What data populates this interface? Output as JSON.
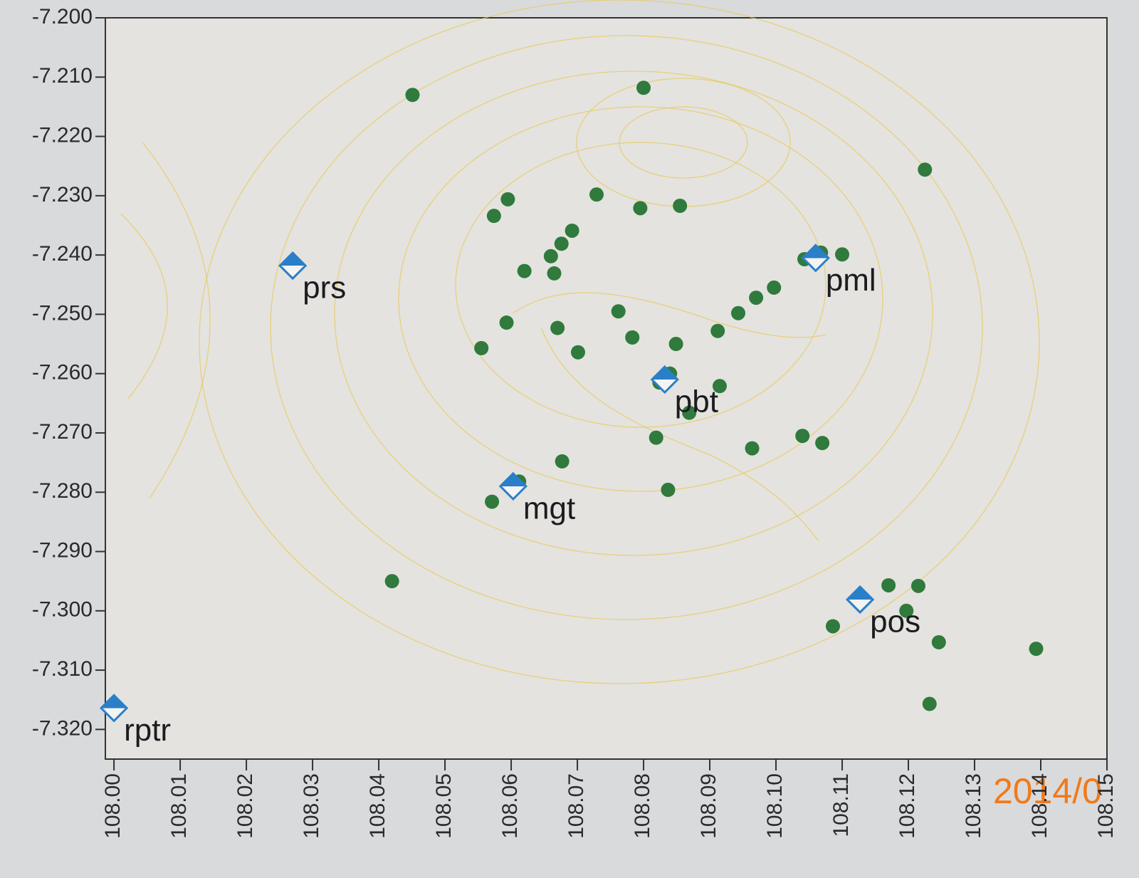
{
  "chart_data": {
    "type": "scatter",
    "xlim": [
      107.9987,
      108.15
    ],
    "ylim": [
      -7.325,
      -7.2
    ],
    "xticks": [
      {
        "value": 108.0,
        "label": "108.00"
      },
      {
        "value": 108.01,
        "label": "108.01"
      },
      {
        "value": 108.02,
        "label": "108.02"
      },
      {
        "value": 108.03,
        "label": "108.03"
      },
      {
        "value": 108.04,
        "label": "108.04"
      },
      {
        "value": 108.05,
        "label": "108.05"
      },
      {
        "value": 108.06,
        "label": "108.06"
      },
      {
        "value": 108.07,
        "label": "108.07"
      },
      {
        "value": 108.08,
        "label": "108.08"
      },
      {
        "value": 108.09,
        "label": "108.09"
      },
      {
        "value": 108.1,
        "label": "108.10"
      },
      {
        "value": 108.11,
        "label": "108.11"
      },
      {
        "value": 108.12,
        "label": "108.12"
      },
      {
        "value": 108.13,
        "label": "108.13"
      },
      {
        "value": 108.14,
        "label": "108.14"
      },
      {
        "value": 108.15,
        "label": "108.15"
      }
    ],
    "yticks": [
      {
        "value": -7.2,
        "label": "-7.200"
      },
      {
        "value": -7.21,
        "label": "-7.210"
      },
      {
        "value": -7.22,
        "label": "-7.220"
      },
      {
        "value": -7.23,
        "label": "-7.230"
      },
      {
        "value": -7.24,
        "label": "-7.240"
      },
      {
        "value": -7.25,
        "label": "-7.250"
      },
      {
        "value": -7.26,
        "label": "-7.260"
      },
      {
        "value": -7.27,
        "label": "-7.270"
      },
      {
        "value": -7.28,
        "label": "-7.280"
      },
      {
        "value": -7.29,
        "label": "-7.290"
      },
      {
        "value": -7.3,
        "label": "-7.300"
      },
      {
        "value": -7.31,
        "label": "-7.310"
      },
      {
        "value": -7.32,
        "label": "-7.320"
      }
    ],
    "series": [
      {
        "color": "#2f7a3c",
        "marker": "circle",
        "x": [
          108.0451,
          108.08,
          108.1225,
          108.0595,
          108.0574,
          108.0729,
          108.0795,
          108.0855,
          108.0692,
          108.0676,
          108.066,
          108.0665,
          108.062,
          108.027,
          108.1043,
          108.1068,
          108.11,
          108.0997,
          108.097,
          108.0943,
          108.0762,
          108.0593,
          108.067,
          108.0555,
          108.0783,
          108.0849,
          108.0912,
          108.0701,
          108.0824,
          108.084,
          108.0915,
          108.0869,
          108.0819,
          108.0964,
          108.104,
          108.107,
          108.0677,
          108.0612,
          108.0571,
          108.0837,
          108.042,
          108.117,
          108.1215,
          108.1197,
          108.1086,
          108.1246,
          108.1393,
          108.1232
        ],
        "y": [
          -7.213,
          -7.2118,
          -7.2256,
          -7.2306,
          -7.2334,
          -7.2298,
          -7.2321,
          -7.2317,
          -7.2359,
          -7.2381,
          -7.2402,
          -7.2431,
          -7.2427,
          -7.2418,
          -7.2407,
          -7.2396,
          -7.2399,
          -7.2455,
          -7.2472,
          -7.2498,
          -7.2495,
          -7.2514,
          -7.2523,
          -7.2557,
          -7.2539,
          -7.255,
          -7.2528,
          -7.2564,
          -7.2615,
          -7.26,
          -7.2621,
          -7.2666,
          -7.2708,
          -7.2726,
          -7.2705,
          -7.2717,
          -7.2748,
          -7.2782,
          -7.2816,
          -7.2796,
          -7.295,
          -7.2957,
          -7.2958,
          -7.3,
          -7.3026,
          -7.3053,
          -7.3064,
          -7.3157
        ]
      },
      {
        "color": "#2a7fc9",
        "marker": "diamond",
        "labels": [
          "prs",
          "pml",
          "pbt",
          "mgt",
          "pos",
          "rptr"
        ],
        "x": [
          108.027,
          108.106,
          108.0832,
          108.0603,
          108.1127,
          108.0
        ],
        "y": [
          -7.2418,
          -7.2405,
          -7.261,
          -7.279,
          -7.2981,
          -7.3164
        ]
      }
    ],
    "annotation": "2014/0"
  }
}
